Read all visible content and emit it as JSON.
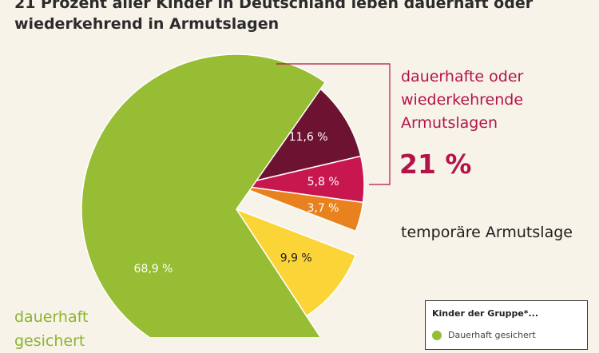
{
  "title": "21 Prozent aller Kinder in Deutschland leben dauerhaft oder wiederkehrend in Armutslagen",
  "annotations": {
    "bracket_lines": [
      "dauerhafte oder",
      "wiederkehrende",
      "Armutslagen"
    ],
    "bracket_total": "21 %",
    "temporary_label": "temporäre Armutslage",
    "secure_label_lines": [
      "dauerhaft",
      "gesichert"
    ]
  },
  "legend": {
    "title": "Kinder der Gruppe*...",
    "items": [
      {
        "label": "Dauerhaft gesichert",
        "color": "#96bd34"
      }
    ]
  },
  "chart_data": {
    "type": "pie",
    "title": "21 Prozent aller Kinder in Deutschland leben dauerhaft oder wiederkehrend in Armutslagen",
    "slices": [
      {
        "label": "11,6 %",
        "value": 11.6,
        "color": "#6d1331"
      },
      {
        "label": "5,8 %",
        "value": 5.8,
        "color": "#c8174f"
      },
      {
        "label": "3,7 %",
        "value": 3.7,
        "color": "#e8821e"
      },
      {
        "label": "9,9 %",
        "value": 9.9,
        "color": "#fbd437"
      },
      {
        "label": "68,9 %",
        "value": 68.9,
        "color": "#96bd34"
      }
    ]
  }
}
